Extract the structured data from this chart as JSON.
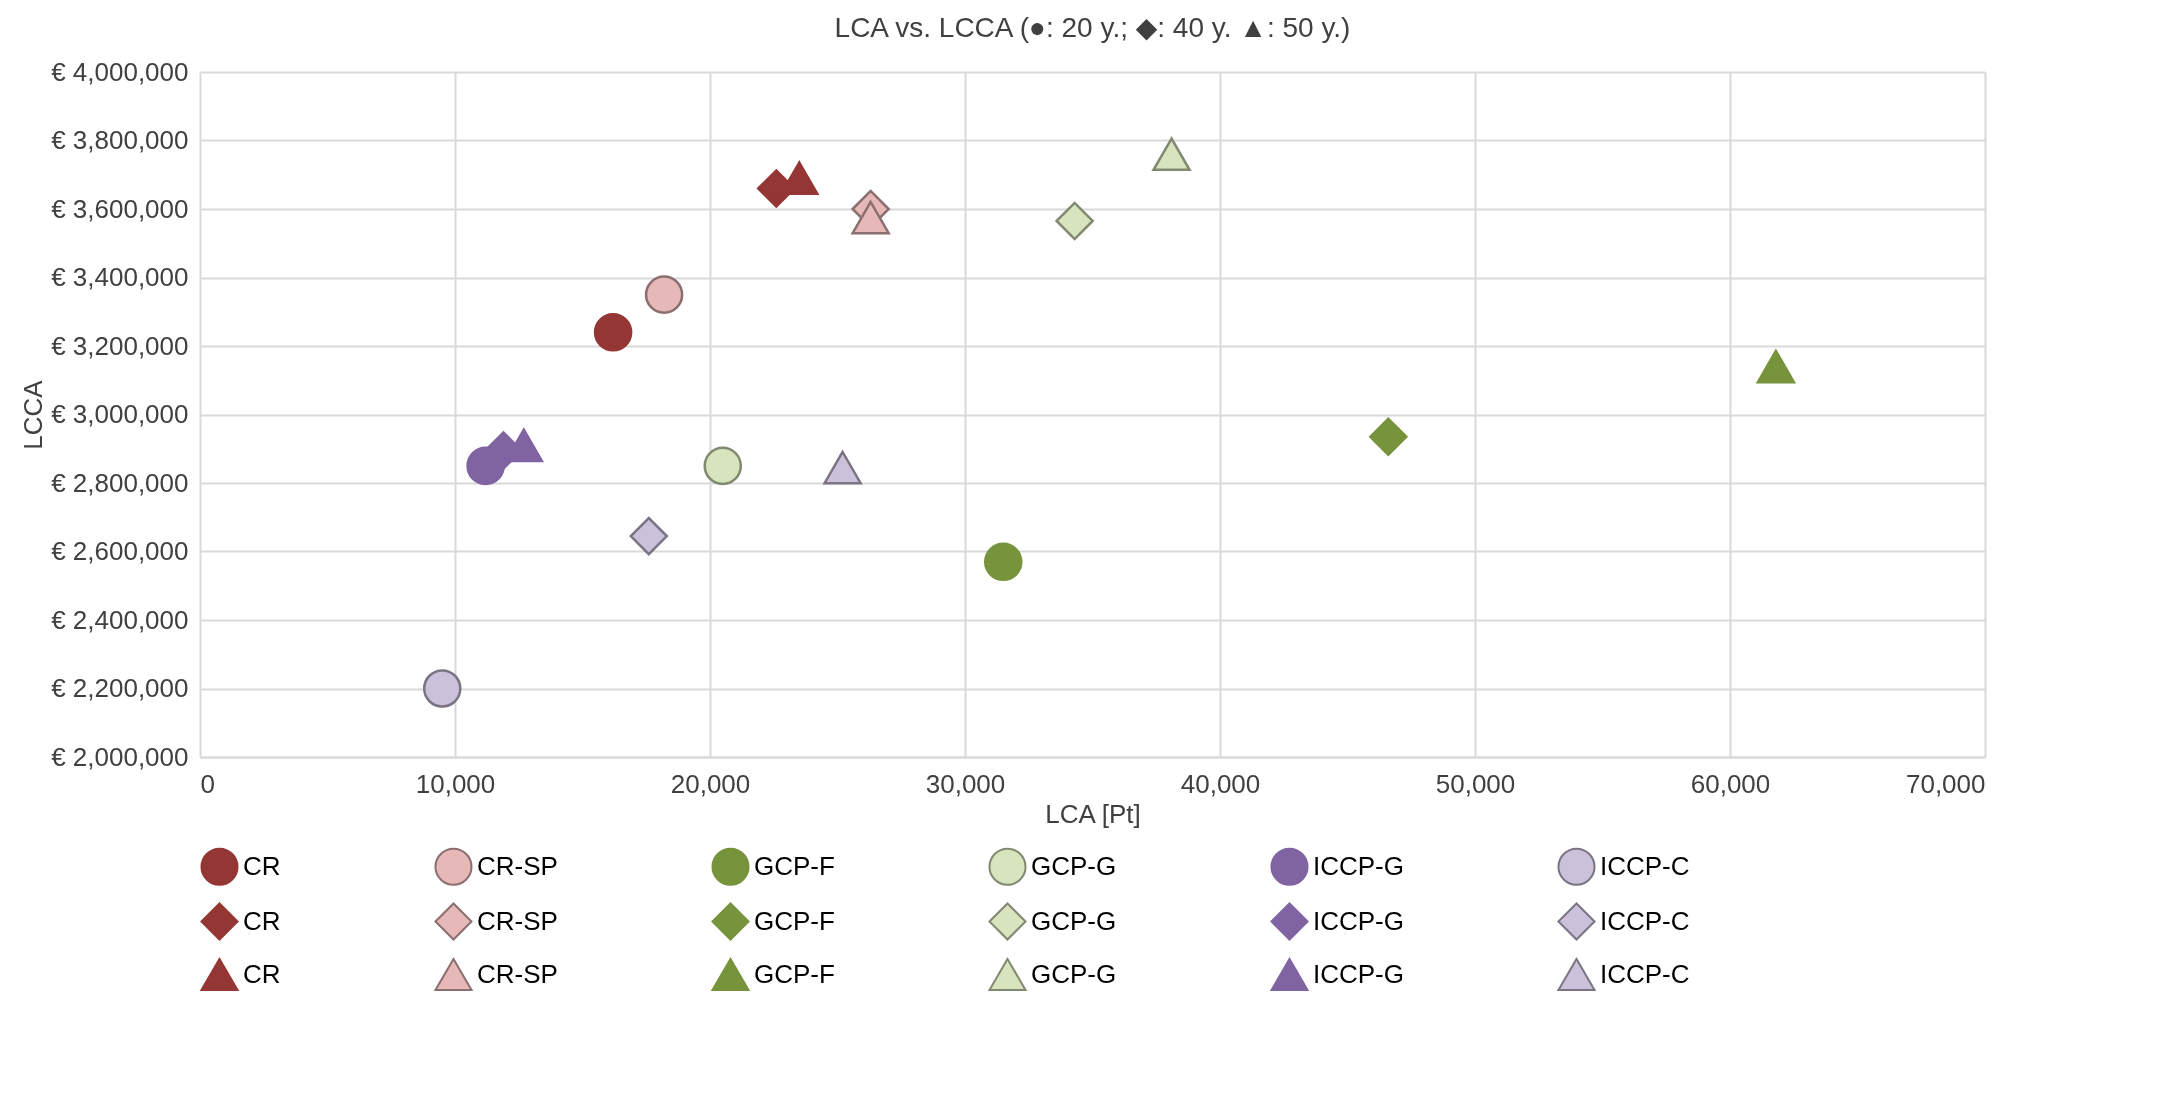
{
  "chart_data": {
    "type": "scatter",
    "title": "LCA vs. LCCA (●: 20 y.; ◆: 40 y. ▲: 50 y.)",
    "xlabel": "LCA [Pt]",
    "ylabel": "LCCA",
    "xlim": [
      0,
      70000
    ],
    "xticks": [
      0,
      {
        "value": 10000,
        "label": "10,000"
      },
      {
        "value": 20000,
        "label": "20,000"
      },
      {
        "value": 30000,
        "label": "30,000"
      },
      {
        "value": 40000,
        "label": "40,000"
      },
      {
        "value": 50000,
        "label": "50,000"
      },
      {
        "value": 60000,
        "label": "60,000"
      },
      {
        "value": 70000,
        "label": "70,000"
      }
    ],
    "ylim": [
      2000000,
      4000000
    ],
    "yticks": [
      {
        "value": 2000000,
        "label": "€ 2,000,000"
      },
      {
        "value": 2200000,
        "label": "€ 2,200,000"
      },
      {
        "value": 2400000,
        "label": "€ 2,400,000"
      },
      {
        "value": 2600000,
        "label": "€ 2,600,000"
      },
      {
        "value": 2800000,
        "label": "€ 2,800,000"
      },
      {
        "value": 3000000,
        "label": "€ 3,000,000"
      },
      {
        "value": 3200000,
        "label": "€ 3,200,000"
      },
      {
        "value": 3400000,
        "label": "€ 3,400,000"
      },
      {
        "value": 3600000,
        "label": "€ 3,600,000"
      },
      {
        "value": 3800000,
        "label": "€ 3,800,000"
      },
      {
        "value": 4000000,
        "label": "€ 4,000,000"
      }
    ],
    "grid": true,
    "legend": "bottom",
    "series": [
      {
        "name": "CR",
        "color": "#943634",
        "marker": "circle",
        "x": [
          16200
        ],
        "values": [
          3240000
        ]
      },
      {
        "name": "CR-SP",
        "color": "#e6b9b8",
        "marker": "circle",
        "x": [
          18200
        ],
        "values": [
          3350000
        ]
      },
      {
        "name": "GCP-F",
        "color": "#77933c",
        "marker": "circle",
        "x": [
          31500
        ],
        "values": [
          2570000
        ]
      },
      {
        "name": "GCP-G",
        "color": "#d7e4bd",
        "marker": "circle",
        "x": [
          20500
        ],
        "values": [
          2850000
        ]
      },
      {
        "name": "ICCP-G",
        "color": "#8064a2",
        "marker": "circle",
        "x": [
          11200
        ],
        "values": [
          2850000
        ]
      },
      {
        "name": "ICCP-C",
        "color": "#ccc1da",
        "marker": "circle",
        "x": [
          9500
        ],
        "values": [
          2200000
        ]
      },
      {
        "name": "CR",
        "color": "#943634",
        "marker": "diamond",
        "x": [
          22600
        ],
        "values": [
          3660000
        ]
      },
      {
        "name": "CR-SP",
        "color": "#e6b9b8",
        "marker": "diamond",
        "x": [
          26300
        ],
        "values": [
          3600000
        ]
      },
      {
        "name": "GCP-F",
        "color": "#77933c",
        "marker": "diamond",
        "x": [
          46600
        ],
        "values": [
          2935000
        ]
      },
      {
        "name": "GCP-G",
        "color": "#d7e4bd",
        "marker": "diamond",
        "x": [
          34300
        ],
        "values": [
          3565000
        ]
      },
      {
        "name": "ICCP-G",
        "color": "#8064a2",
        "marker": "diamond",
        "x": [
          11900
        ],
        "values": [
          2895000
        ]
      },
      {
        "name": "ICCP-C",
        "color": "#ccc1da",
        "marker": "diamond",
        "x": [
          17600
        ],
        "values": [
          2645000
        ]
      },
      {
        "name": "CR",
        "color": "#943634",
        "marker": "triangle",
        "x": [
          23500
        ],
        "values": [
          3690000
        ]
      },
      {
        "name": "CR-SP",
        "color": "#e6b9b8",
        "marker": "triangle",
        "x": [
          26300
        ],
        "values": [
          3575000
        ]
      },
      {
        "name": "GCP-F",
        "color": "#77933c",
        "marker": "triangle",
        "x": [
          61800
        ],
        "values": [
          3140000
        ]
      },
      {
        "name": "GCP-G",
        "color": "#d7e4bd",
        "marker": "triangle",
        "x": [
          38100
        ],
        "values": [
          3760000
        ]
      },
      {
        "name": "ICCP-G",
        "color": "#8064a2",
        "marker": "triangle",
        "x": [
          12700
        ],
        "values": [
          2910000
        ]
      },
      {
        "name": "ICCP-C",
        "color": "#ccc1da",
        "marker": "triangle",
        "x": [
          25200
        ],
        "values": [
          2845000
        ]
      }
    ]
  }
}
